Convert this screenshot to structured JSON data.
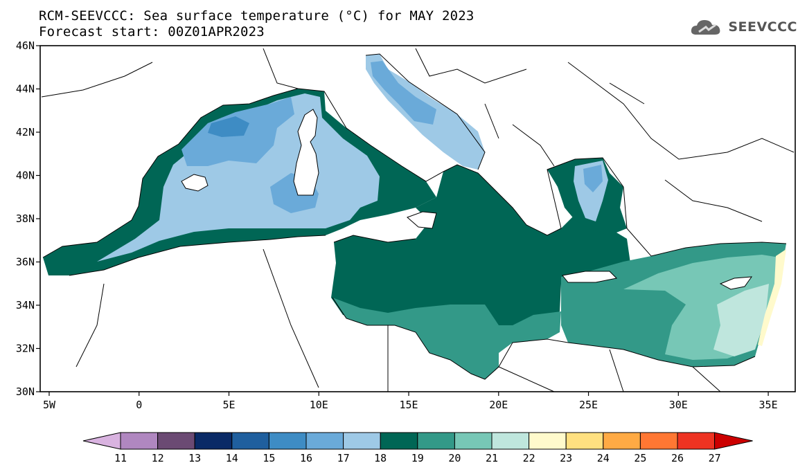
{
  "header": {
    "title": "RCM-SEEVCCC: Sea surface temperature (°C) for MAY 2023",
    "subtitle": "Forecast start: 00Z01APR2023",
    "logo_text": "SEEVCCC"
  },
  "map": {
    "lon_ticks": [
      "5W",
      "0",
      "5E",
      "10E",
      "15E",
      "20E",
      "25E",
      "30E",
      "35E"
    ],
    "lat_ticks": [
      "46N",
      "44N",
      "42N",
      "40N",
      "38N",
      "36N",
      "34N",
      "32N",
      "30N"
    ],
    "lon_range": [
      -5.5,
      36.5
    ],
    "lat_range": [
      30,
      46
    ],
    "land_color": "#ffffff",
    "coastline_color": "#000000"
  },
  "colorbar": {
    "labels": [
      "11",
      "12",
      "13",
      "14",
      "15",
      "16",
      "17",
      "18",
      "19",
      "20",
      "21",
      "22",
      "23",
      "24",
      "25",
      "26",
      "27"
    ],
    "colors": [
      "#d9b3e0",
      "#b087c0",
      "#6b4a73",
      "#0a2a66",
      "#1f5f9e",
      "#3e8cc4",
      "#6aaad9",
      "#9ec9e6",
      "#006655",
      "#339988",
      "#77c7b6",
      "#bfe6dd",
      "#fffacc",
      "#ffe080",
      "#ffaa44",
      "#ff7733",
      "#ee3322",
      "#cc0000"
    ]
  },
  "sst_colors": {
    "c15": "#1f5f9e",
    "c16": "#3e8cc4",
    "c17": "#6aaad9",
    "c18": "#9ec9e6",
    "c19": "#006655",
    "c20": "#339988",
    "c21": "#77c7b6",
    "c22": "#bfe6dd",
    "c23": "#fffacc"
  }
}
